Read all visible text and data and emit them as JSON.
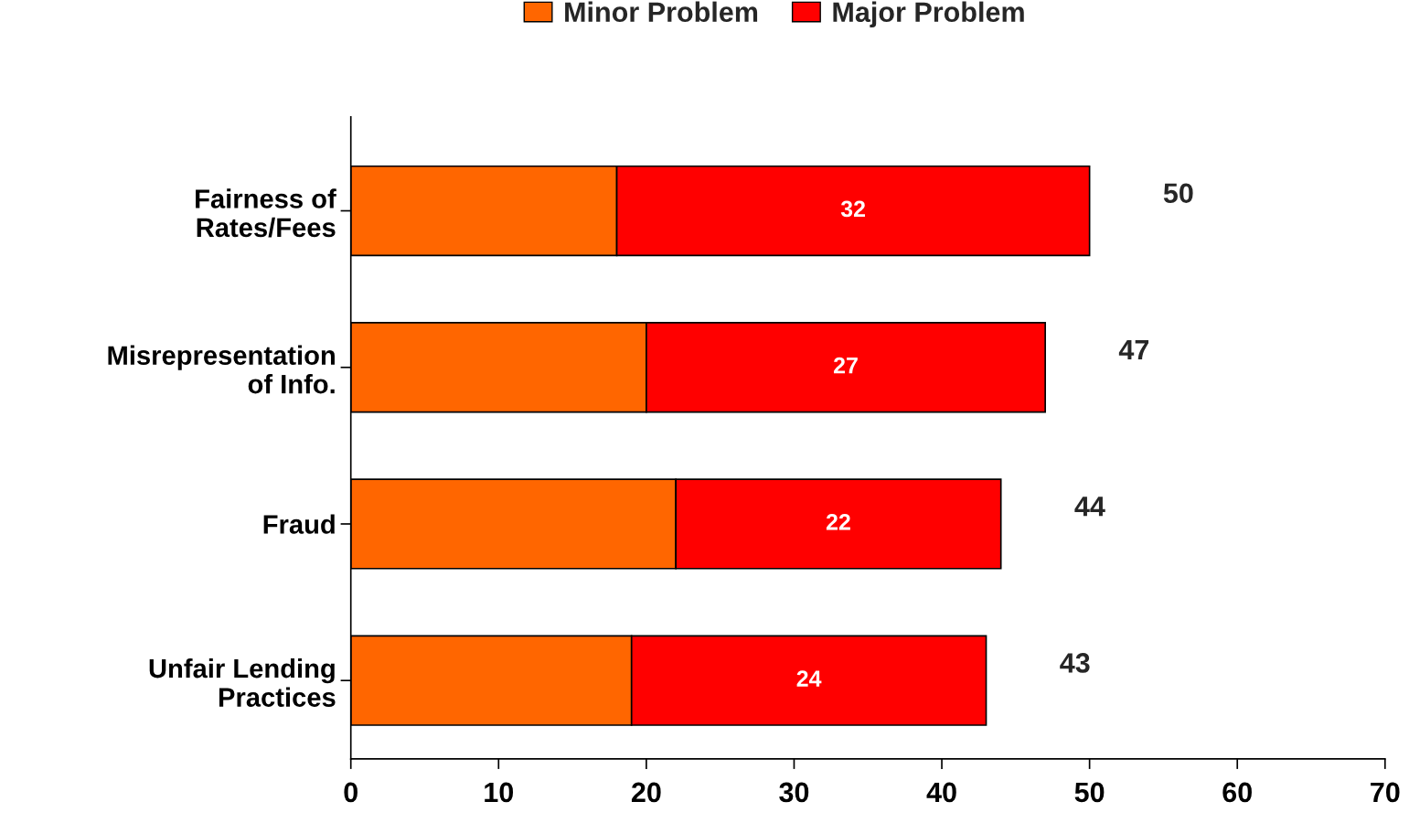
{
  "chart_data": {
    "type": "bar",
    "orientation": "horizontal",
    "stacked": true,
    "categories": [
      "Fairness of\nRates/Fees",
      "Misrepresentation\nof Info.",
      "Fraud",
      "Unfair Lending\nPractices"
    ],
    "series": [
      {
        "name": "Minor Problem",
        "color": "#ff6600",
        "values": [
          18,
          20,
          22,
          19
        ]
      },
      {
        "name": "Major Problem",
        "color": "#ff0000",
        "values": [
          32,
          27,
          22,
          24
        ],
        "value_labels": [
          "32",
          "27",
          "22",
          "24"
        ]
      }
    ],
    "totals": [
      "50",
      "47",
      "44",
      "43"
    ],
    "xlim": [
      0,
      70
    ],
    "xticks": [
      0,
      10,
      20,
      30,
      40,
      50,
      60,
      70
    ],
    "grid": false,
    "legend": "top"
  }
}
